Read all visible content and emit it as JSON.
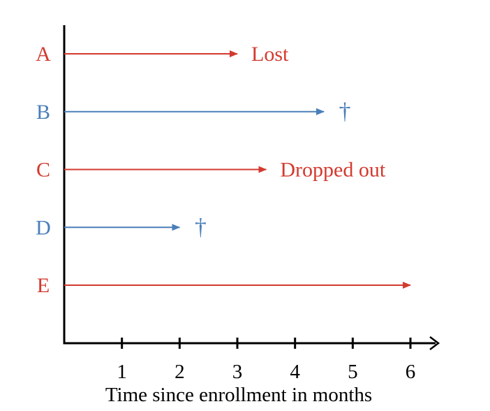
{
  "colors": {
    "red": "#d33a2f",
    "blue": "#4a7fb8",
    "axis": "#000000"
  },
  "chart_data": {
    "type": "timeline",
    "xlabel": "Time since enrollment in months",
    "ylabel": "",
    "xlim": [
      0,
      6.5
    ],
    "x_ticks": [
      1,
      2,
      3,
      4,
      5,
      6
    ],
    "x_tick_labels": [
      "1",
      "2",
      "3",
      "4",
      "5",
      "6"
    ],
    "subjects": [
      {
        "label": "A",
        "end": 3.0,
        "color": "red",
        "annotation": "Lost",
        "marker": ""
      },
      {
        "label": "B",
        "end": 4.5,
        "color": "blue",
        "annotation": "",
        "marker": "†"
      },
      {
        "label": "C",
        "end": 3.5,
        "color": "red",
        "annotation": "Dropped out",
        "marker": ""
      },
      {
        "label": "D",
        "end": 2.0,
        "color": "blue",
        "annotation": "",
        "marker": "†"
      },
      {
        "label": "E",
        "end": 6.0,
        "color": "red",
        "annotation": "",
        "marker": ""
      }
    ]
  }
}
